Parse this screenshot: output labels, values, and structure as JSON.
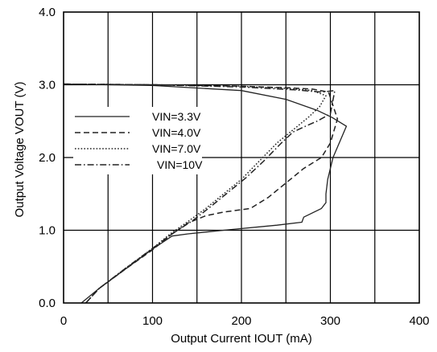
{
  "chart_data": {
    "type": "line",
    "xlabel": "Output Current IOUT (mA)",
    "ylabel": "Output Voltage VOUT (V)",
    "xlim": [
      0,
      400
    ],
    "ylim": [
      0,
      4
    ],
    "x_ticks": [
      "0",
      "100",
      "200",
      "300",
      "400"
    ],
    "y_ticks": [
      "0.0",
      "1.0",
      "2.0",
      "3.0",
      "4.0"
    ],
    "grid": true,
    "legend_position": "left-middle",
    "series": [
      {
        "name": "VIN=3.3V",
        "dash": "solid",
        "x": [
          0,
          100,
          200,
          250,
          285,
          302,
          318,
          303,
          297,
          295,
          295,
          290,
          280,
          270,
          268,
          240,
          180,
          140,
          122,
          100,
          70,
          40,
          20
        ],
        "y": [
          3.01,
          2.99,
          2.92,
          2.8,
          2.65,
          2.55,
          2.43,
          2.0,
          1.7,
          1.5,
          1.38,
          1.3,
          1.24,
          1.18,
          1.11,
          1.07,
          1.0,
          0.95,
          0.92,
          0.74,
          0.47,
          0.2,
          0.0
        ]
      },
      {
        "name": "VIN=4.0V",
        "dash": "dashed",
        "x": [
          0,
          100,
          200,
          250,
          280,
          298,
          308,
          300,
          290,
          270,
          250,
          230,
          210,
          180,
          160,
          140,
          120,
          100,
          70,
          40,
          25
        ],
        "y": [
          3.01,
          3.0,
          2.98,
          2.96,
          2.94,
          2.9,
          2.53,
          2.2,
          2.0,
          1.85,
          1.65,
          1.45,
          1.3,
          1.25,
          1.2,
          1.1,
          0.93,
          0.73,
          0.47,
          0.2,
          0.0
        ]
      },
      {
        "name": "VIN=7.0V",
        "dash": "dotted",
        "x": [
          0,
          100,
          200,
          250,
          280,
          295,
          288,
          275,
          265,
          255,
          240,
          220,
          200,
          180,
          160,
          140,
          120,
          100,
          70,
          40,
          25
        ],
        "y": [
          3.01,
          3.0,
          2.98,
          2.95,
          2.92,
          2.85,
          2.7,
          2.55,
          2.45,
          2.35,
          2.2,
          1.95,
          1.7,
          1.5,
          1.3,
          1.12,
          0.95,
          0.75,
          0.48,
          0.2,
          0.0
        ]
      },
      {
        "name": "VIN=10V",
        "dash": "dashdot",
        "x": [
          0,
          100,
          200,
          260,
          290,
          305,
          300,
          285,
          270,
          258,
          245,
          225,
          205,
          185,
          165,
          145,
          122,
          100,
          70,
          40,
          25
        ],
        "y": [
          3.01,
          3.0,
          2.97,
          2.93,
          2.9,
          2.92,
          2.6,
          2.5,
          2.42,
          2.35,
          2.2,
          1.95,
          1.72,
          1.52,
          1.32,
          1.13,
          0.95,
          0.75,
          0.48,
          0.2,
          0.0
        ]
      }
    ]
  }
}
